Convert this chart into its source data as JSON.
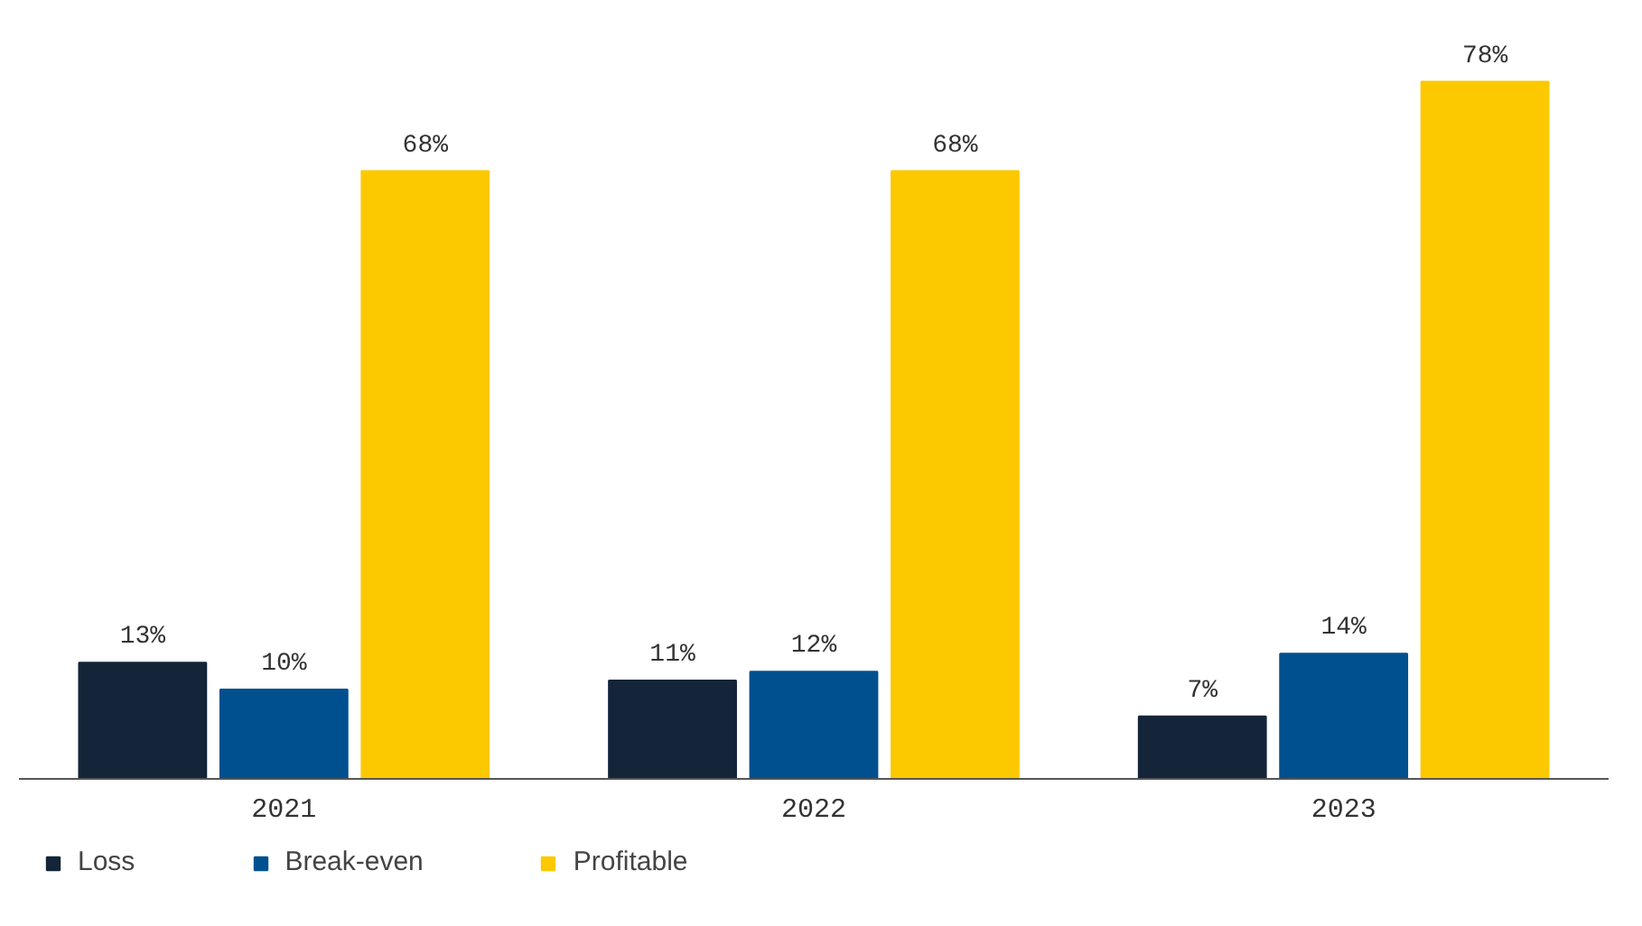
{
  "chart_data": {
    "type": "bar",
    "categories": [
      "2021",
      "2022",
      "2023"
    ],
    "series": [
      {
        "name": "Loss",
        "color": "#14253a",
        "values": [
          13,
          11,
          7
        ],
        "value_labels": [
          "13%",
          "11%",
          "7%"
        ]
      },
      {
        "name": "Break-even",
        "color": "#00508f",
        "values": [
          10,
          12,
          14
        ],
        "value_labels": [
          "10%",
          "12%",
          "14%"
        ]
      },
      {
        "name": "Profitable",
        "color": "#fcc800",
        "values": [
          68,
          68,
          78
        ],
        "value_labels": [
          "68%",
          "68%",
          "78%"
        ]
      }
    ],
    "legend": "bottom"
  }
}
